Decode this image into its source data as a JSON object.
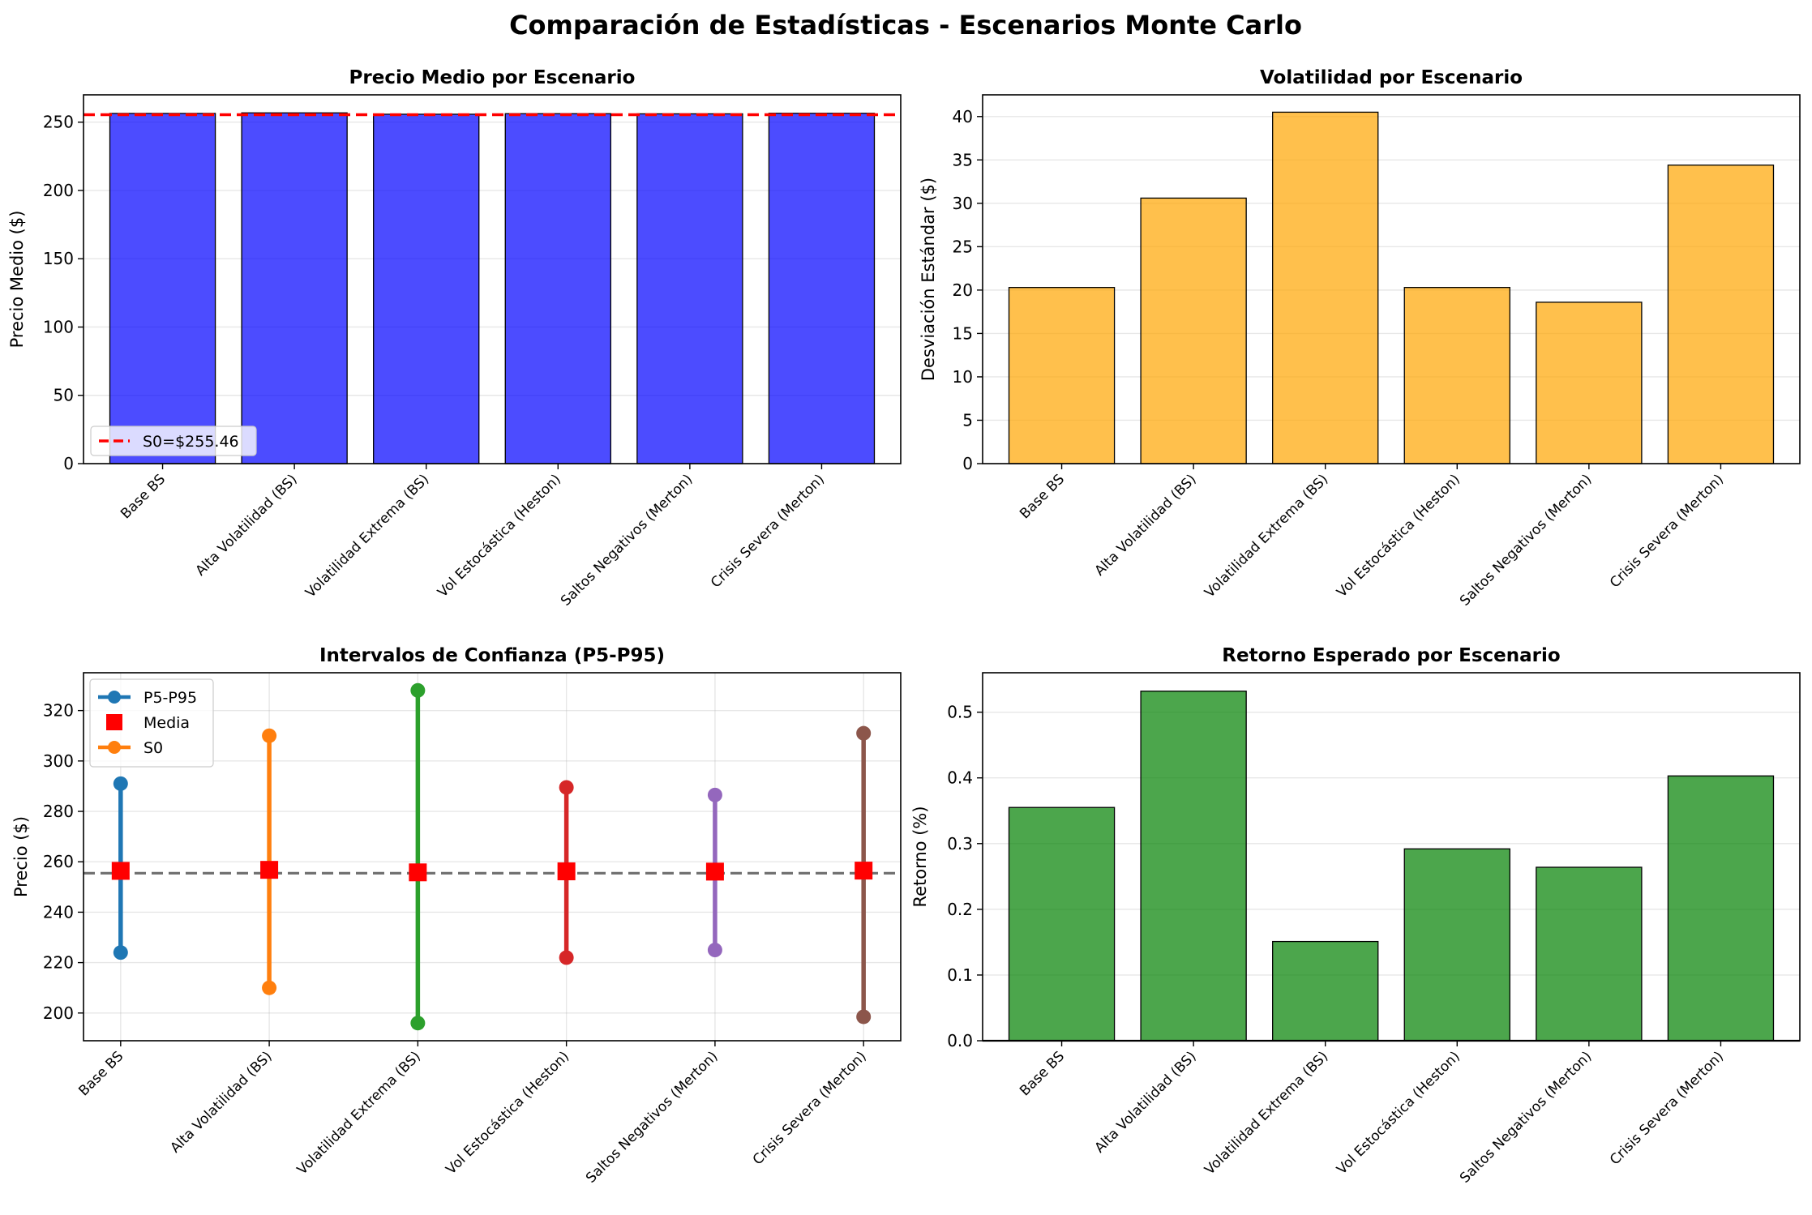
{
  "suptitle": "Comparación de Estadísticas - Escenarios Monte Carlo",
  "colors": {
    "mean_bar": "#0000ff",
    "std_bar": "#ffa500",
    "ret_bar": "#008000",
    "s0_line": "#ff0000",
    "s0_ci_line": "#555555",
    "media_marker": "#ff0000",
    "scenario_colors": [
      "#1f77b4",
      "#ff7f0e",
      "#2ca02c",
      "#d62728",
      "#9467bd",
      "#8c564b"
    ]
  },
  "chart_data": [
    {
      "type": "bar",
      "title": "Precio Medio por Escenario",
      "xlabel": "",
      "ylabel": "Precio Medio ($)",
      "categories": [
        "Base BS",
        "Alta Volatilidad (BS)",
        "Volatilidad Extrema (BS)",
        "Vol Estocástica (Heston)",
        "Saltos Negativos (Merton)",
        "Crisis Severa (Merton)"
      ],
      "values": [
        256.4,
        256.8,
        255.8,
        256.2,
        256.1,
        256.5
      ],
      "ylim": [
        0,
        270
      ],
      "yticks": [
        0,
        50,
        100,
        150,
        200,
        250
      ],
      "reference_line": {
        "value": 255.46,
        "label": "S0=$255.46"
      },
      "legend": {
        "position": "lower-left",
        "entries": [
          "S0=$255.46"
        ]
      },
      "grid": true
    },
    {
      "type": "bar",
      "title": "Volatilidad por Escenario",
      "xlabel": "",
      "ylabel": "Desviación Estándar ($)",
      "categories": [
        "Base BS",
        "Alta Volatilidad (BS)",
        "Volatilidad Extrema (BS)",
        "Vol Estocástica (Heston)",
        "Saltos Negativos (Merton)",
        "Crisis Severa (Merton)"
      ],
      "values": [
        20.3,
        30.6,
        40.5,
        20.3,
        18.6,
        34.4
      ],
      "ylim": [
        0,
        42.5
      ],
      "yticks": [
        0,
        5,
        10,
        15,
        20,
        25,
        30,
        35,
        40
      ],
      "grid": true
    },
    {
      "type": "errorbar",
      "title": "Intervalos de Confianza (P5-P95)",
      "xlabel": "",
      "ylabel": "Precio ($)",
      "categories": [
        "Base BS",
        "Alta Volatilidad (BS)",
        "Volatilidad Extrema (BS)",
        "Vol Estocástica (Heston)",
        "Saltos Negativos (Merton)",
        "Crisis Severa (Merton)"
      ],
      "p5": [
        224.0,
        210.0,
        196.0,
        222.0,
        225.0,
        198.5
      ],
      "p95": [
        291.0,
        310.0,
        328.0,
        289.5,
        286.5,
        311.0
      ],
      "mean": [
        256.4,
        256.8,
        255.8,
        256.2,
        256.1,
        256.5
      ],
      "s0": 255.46,
      "ylim": [
        189,
        335
      ],
      "yticks": [
        200,
        220,
        240,
        260,
        280,
        300,
        320
      ],
      "legend": {
        "position": "top-left",
        "entries": [
          "P5-P95",
          "Media",
          "S0"
        ]
      },
      "grid": true
    },
    {
      "type": "bar",
      "title": "Retorno Esperado por Escenario",
      "xlabel": "",
      "ylabel": "Retorno (%)",
      "categories": [
        "Base BS",
        "Alta Volatilidad (BS)",
        "Volatilidad Extrema (BS)",
        "Vol Estocástica (Heston)",
        "Saltos Negativos (Merton)",
        "Crisis Severa (Merton)"
      ],
      "values": [
        0.355,
        0.532,
        0.151,
        0.292,
        0.264,
        0.403
      ],
      "ylim": [
        0,
        0.56
      ],
      "yticks": [
        0.0,
        0.1,
        0.2,
        0.3,
        0.4,
        0.5
      ],
      "grid": true
    }
  ]
}
